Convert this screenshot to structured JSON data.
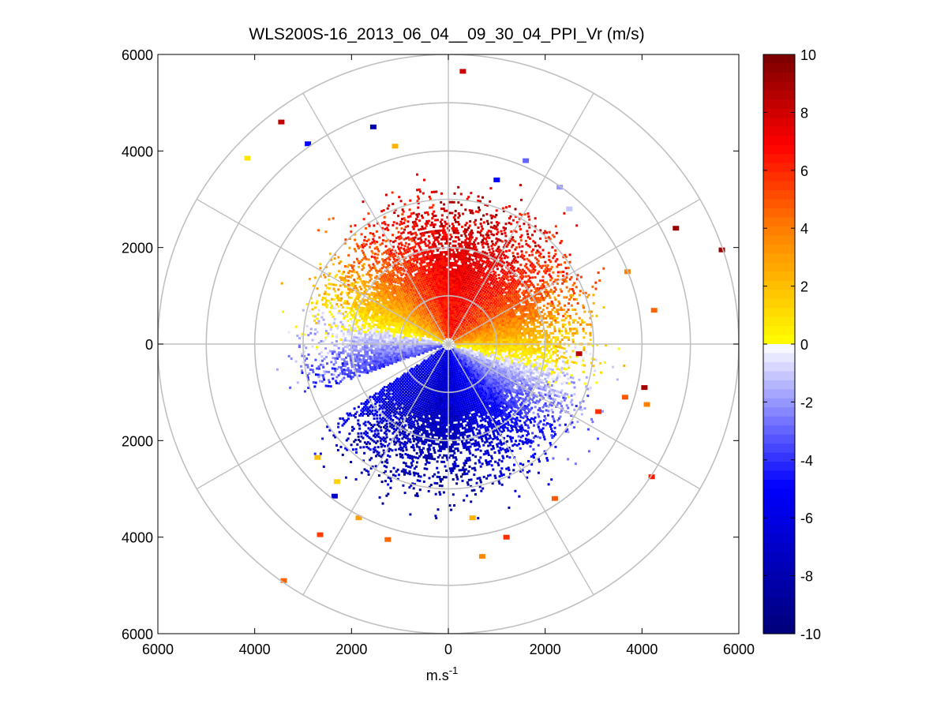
{
  "chart_data": {
    "type": "heatmap",
    "subtype": "polar-ppi",
    "title": "WLS200S-16_2013_06_04__09_30_04_PPI_Vr (m/s)",
    "xlabel": "m.s",
    "xlabel_superscript": "-1",
    "xlim": [
      -6000,
      6000
    ],
    "ylim": [
      -6000,
      6000
    ],
    "x_tick_labels": [
      "6000",
      "4000",
      "2000",
      "0",
      "2000",
      "4000",
      "6000"
    ],
    "y_tick_labels": [
      "6000",
      "4000",
      "2000",
      "0",
      "2000",
      "4000",
      "6000"
    ],
    "polar_grid": {
      "ring_radii": [
        1000,
        2000,
        3000,
        4000,
        5000,
        6000
      ],
      "spoke_angles_deg": [
        0,
        30,
        60,
        90,
        120,
        150,
        180,
        210,
        240,
        270,
        300,
        330
      ],
      "grid_color": "#c0c0c0"
    },
    "colorbar": {
      "min": -10,
      "max": 10,
      "tick_labels": [
        "10",
        "8",
        "6",
        "4",
        "2",
        "0",
        "-2",
        "-4",
        "-6",
        "-8",
        "-10"
      ],
      "colormap": "blue-white-yellow-red",
      "stops": [
        "#00007f",
        "#0000ff",
        "#ffffff",
        "#ffff00",
        "#ff7f00",
        "#ff0000",
        "#7f0000"
      ]
    },
    "field_description_values": {
      "wind_direction_deg": 90,
      "velocity_amplitude_ms": 7,
      "dense_range_m": [
        150,
        2200
      ],
      "blind_sector_deg": [
        200,
        214
      ]
    },
    "outlier_points": [
      {
        "x": 300,
        "y": 5650,
        "v": 8.0
      },
      {
        "x": -3450,
        "y": 4600,
        "v": 8.5
      },
      {
        "x": -1550,
        "y": 4500,
        "v": -8.0
      },
      {
        "x": -2900,
        "y": 4150,
        "v": -5.0
      },
      {
        "x": -4150,
        "y": 3850,
        "v": 0.8
      },
      {
        "x": -1100,
        "y": 4100,
        "v": 2.5
      },
      {
        "x": 4700,
        "y": 2400,
        "v": 9.5
      },
      {
        "x": 5650,
        "y": 1950,
        "v": 9.5
      },
      {
        "x": 4250,
        "y": 700,
        "v": 4.5
      },
      {
        "x": 3700,
        "y": 1500,
        "v": 4.0
      },
      {
        "x": 4050,
        "y": -900,
        "v": 9.0
      },
      {
        "x": 4200,
        "y": -2750,
        "v": 6.5
      },
      {
        "x": 3100,
        "y": -1400,
        "v": 6.0
      },
      {
        "x": 3650,
        "y": -1100,
        "v": 5.0
      },
      {
        "x": 4100,
        "y": -1250,
        "v": 4.0
      },
      {
        "x": 2700,
        "y": -200,
        "v": 8.8
      },
      {
        "x": 2200,
        "y": -3200,
        "v": 5.0
      },
      {
        "x": 1200,
        "y": -4000,
        "v": 6.0
      },
      {
        "x": 700,
        "y": -4400,
        "v": 3.5
      },
      {
        "x": 500,
        "y": -3600,
        "v": 2.5
      },
      {
        "x": -2650,
        "y": -3950,
        "v": 5.5
      },
      {
        "x": -3400,
        "y": -4900,
        "v": 4.5
      },
      {
        "x": -1250,
        "y": -4050,
        "v": 4.5
      },
      {
        "x": -1850,
        "y": -3600,
        "v": 3.0
      },
      {
        "x": -2350,
        "y": -3150,
        "v": -7.0
      },
      {
        "x": -2300,
        "y": -2850,
        "v": 1.5
      },
      {
        "x": -2700,
        "y": -2350,
        "v": 2.0
      },
      {
        "x": 1600,
        "y": 3800,
        "v": -3.0
      },
      {
        "x": 2300,
        "y": 3250,
        "v": -2.0
      },
      {
        "x": 1000,
        "y": 3400,
        "v": -5.0
      },
      {
        "x": 2500,
        "y": 2800,
        "v": -1.0
      }
    ]
  }
}
